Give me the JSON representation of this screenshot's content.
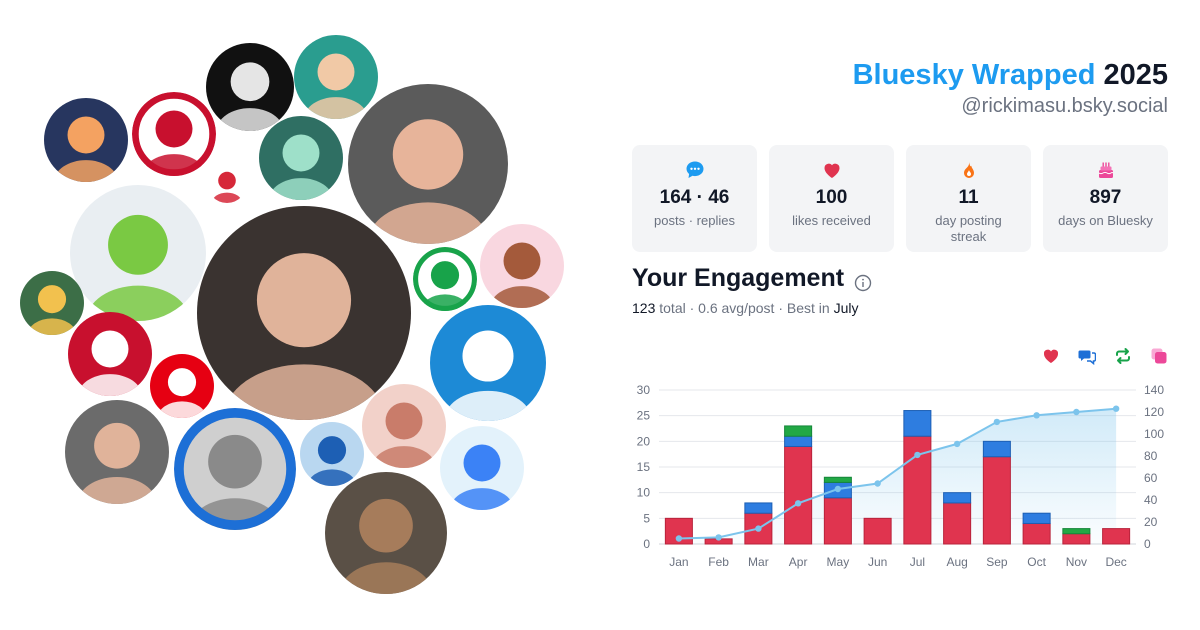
{
  "header": {
    "title_brand": "Bluesky Wrapped",
    "title_year": "2025",
    "handle": "@rickimasu.bsky.social"
  },
  "stats": [
    {
      "icon": "speech-bubble-icon",
      "value": "164 · 46",
      "label": "posts · replies",
      "color": "#1d9bf0"
    },
    {
      "icon": "heart-icon",
      "value": "100",
      "label": "likes received",
      "color": "#e0344f"
    },
    {
      "icon": "flame-icon",
      "value": "11",
      "label": "day posting streak",
      "color": "#f97316"
    },
    {
      "icon": "cake-icon",
      "value": "897",
      "label": "days on Bluesky",
      "color": "#ec4899"
    }
  ],
  "engagement": {
    "title": "Your Engagement",
    "total_value": "123",
    "total_label": "total",
    "avg": "0.6 avg/post",
    "best_prefix": "Best in",
    "best_month": "July",
    "sep": "·"
  },
  "legend": [
    {
      "icon": "heart-icon",
      "color": "#e0344f"
    },
    {
      "icon": "reply-icon",
      "color": "#1d6fd6"
    },
    {
      "icon": "repost-icon",
      "color": "#18a34a"
    },
    {
      "icon": "quote-icon",
      "color": "#ec4899"
    }
  ],
  "colors": {
    "likes": "#e0344f",
    "replies": "#2e7de0",
    "reposts": "#22a845",
    "quotes": "#ec4899",
    "cumulative": "#7cc4ec"
  },
  "chart_data": {
    "type": "bar",
    "stacked": true,
    "categories": [
      "Jan",
      "Feb",
      "Mar",
      "Apr",
      "May",
      "Jun",
      "Jul",
      "Aug",
      "Sep",
      "Oct",
      "Nov",
      "Dec"
    ],
    "series": [
      {
        "values": [
          5,
          1,
          6,
          19,
          9,
          5,
          21,
          8,
          17,
          4,
          2,
          3
        ]
      },
      {
        "values": [
          0,
          0,
          2,
          2,
          3,
          0,
          5,
          2,
          3,
          2,
          0,
          0
        ]
      },
      {
        "values": [
          0,
          0,
          0,
          2,
          1,
          0,
          0,
          0,
          0,
          0,
          1,
          0
        ]
      }
    ],
    "cumulative": [
      5,
      6,
      14,
      37,
      50,
      55,
      81,
      91,
      111,
      117,
      120,
      123
    ],
    "ylim_left": [
      0,
      30
    ],
    "yticks_left": [
      0,
      5,
      10,
      15,
      20,
      25,
      30
    ],
    "ylim_right": [
      0,
      140
    ],
    "yticks_right": [
      0,
      20,
      40,
      60,
      80,
      100,
      120,
      140
    ],
    "grid": true,
    "legend": "top-right"
  }
}
